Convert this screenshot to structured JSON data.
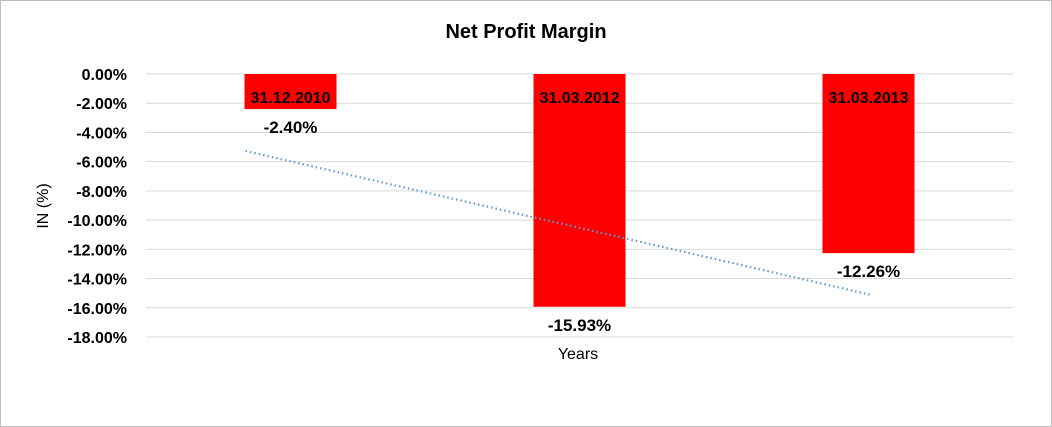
{
  "chart_data": {
    "type": "bar",
    "title": "Net Profit Margin",
    "xlabel": "Years",
    "ylabel": "IN (%)",
    "categories": [
      "31.12.2010",
      "31.03.2012",
      "31.03.2013"
    ],
    "values": [
      -2.4,
      -15.93,
      -12.26
    ],
    "data_labels": [
      "-2.40%",
      "-15.93%",
      "-12.26%"
    ],
    "ylim": [
      -18,
      0
    ],
    "yticks": [
      "0.00%",
      "-2.00%",
      "-4.00%",
      "-6.00%",
      "-8.00%",
      "-10.00%",
      "-12.00%",
      "-14.00%",
      "-16.00%",
      "-18.00%"
    ],
    "ytick_values": [
      0,
      -2,
      -4,
      -6,
      -8,
      -10,
      -12,
      -14,
      -16,
      -18
    ],
    "grid": true,
    "trendline": {
      "type": "linear",
      "style": "dotted",
      "color": "#5b9bd5"
    },
    "bar_color": "#ff0000",
    "grid_color": "#d9d9d9"
  }
}
